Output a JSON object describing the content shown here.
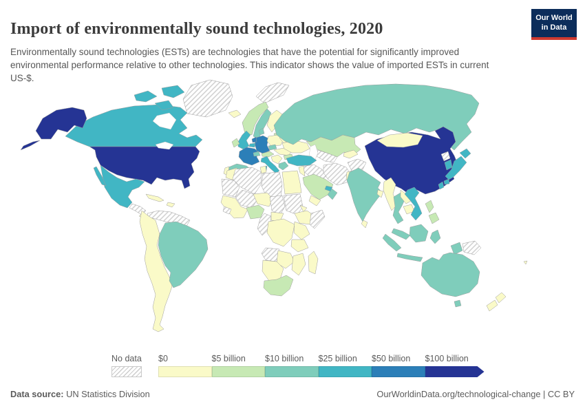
{
  "header": {
    "title": "Import of environmentally sound technologies, 2020",
    "subtitle": "Environmentally sound technologies (ESTs) are technologies that have the potential for significantly improved environmental performance relative to other technologies. This indicator shows the value of imported ESTs in current US-$.",
    "logo": {
      "line1": "Our World",
      "line2": "in Data",
      "bg": "#0c2d5b",
      "accent": "#cf3a30"
    }
  },
  "legend": {
    "no_data_label": "No data",
    "stops": [
      {
        "label": "$0",
        "color": "#fafac8"
      },
      {
        "label": "$5 billion",
        "color": "#c7e9b4"
      },
      {
        "label": "$10 billion",
        "color": "#7fcdbb"
      },
      {
        "label": "$25 billion",
        "color": "#41b6c4"
      },
      {
        "label": "$50 billion",
        "color": "#2c7fb8"
      },
      {
        "label": "$100 billion",
        "color": "#253494"
      }
    ]
  },
  "footer": {
    "source_label": "Data source:",
    "source_value": " UN Statistics Division",
    "link": "OurWorldinData.org/technological-change | CC BY"
  },
  "map": {
    "border_color": "#9c9c9c",
    "hatch_line_color": "#cccccc",
    "bucket_colors": {
      "b1": "#fafac8",
      "b2": "#c7e9b4",
      "b3": "#7fcdbb",
      "b4": "#41b6c4",
      "b5": "#2c7fb8",
      "b6": "#253494"
    },
    "regions": {
      "greenland": "b0",
      "svalbard": "b0",
      "canada": "b4",
      "alaska": "b6",
      "usa": "b6",
      "mexico": "b4",
      "guatemala_honduras": "b0",
      "central_america": "b1",
      "cuba": "b1",
      "hispaniola": "b1",
      "venezuela_guyanas": "b0",
      "brazil": "b3",
      "south_america_west": "b1",
      "iceland": "b1",
      "norway": "b2",
      "sweden": "b3",
      "finland": "b1",
      "baltics": "b2",
      "uk": "b4",
      "ireland": "b2",
      "france": "b5",
      "spain": "b3",
      "portugal": "b1",
      "germany": "b5",
      "netherlands": "b5",
      "belgium": "b4",
      "denmark": "b3",
      "switzerland": "b3",
      "czechia": "b3",
      "austria": "b2",
      "poland": "b1",
      "italy": "b4",
      "balkans": "b1",
      "greece": "b3",
      "hungary_romania": "b1",
      "bulgaria": "b2",
      "belarus": "b1",
      "ukraine": "b1",
      "russia": "b3",
      "kazakhstan": "b2",
      "central_asia": "b0",
      "kyrgyz_tajik": "b1",
      "turkey": "b4",
      "syria_iraq": "b0",
      "israel_jordan": "b1",
      "iran": "b0",
      "afghanistan": "b0",
      "pakistan": "b1",
      "saudi_arabia": "b2",
      "yemen": "b1",
      "oman": "b3",
      "uae": "b4",
      "morocco": "b1",
      "algeria": "b0",
      "tunisia": "b1",
      "libya": "b0",
      "egypt": "b1",
      "mauritania_wsahara": "b0",
      "mali": "b0",
      "niger": "b1",
      "chad": "b0",
      "sudan": "b0",
      "eritrea": "b1",
      "ethiopia": "b1",
      "somalia": "b0",
      "west_africa": "b1",
      "guinea": "b0",
      "nigeria": "b2",
      "cameroon_gabon_congo": "b0",
      "car": "b1",
      "drc": "b1",
      "uganda_kenya": "b1",
      "tanzania": "b1",
      "angola": "b0",
      "zambia_zimbabwe": "b1",
      "mozambique": "b1",
      "namibia_botswana": "b1",
      "south_africa": "b2",
      "madagascar": "b1",
      "china": "b6",
      "mongolia": "b1",
      "nepal": "b1",
      "india": "b3",
      "bangladesh": "b1",
      "sri_lanka": "b1",
      "myanmar": "b1",
      "thailand": "b3",
      "laos": "b1",
      "cambodia": "b1",
      "vietnam": "b4",
      "malaysia": "b3",
      "indonesia": "b3",
      "png": "b0",
      "philippines": "b2",
      "taiwan": "b4",
      "north_korea": "b0",
      "south_korea": "b4",
      "japan": "b4",
      "australia": "b3",
      "nz": "b1",
      "fiji": "b1"
    }
  },
  "chart_data": {
    "type": "heatmap",
    "title": "Import of environmentally sound technologies, 2020",
    "unit": "current US-$",
    "year": 2020,
    "legend_position": "bottom",
    "bins": [
      "$0–5 billion",
      "$5–10 billion",
      "$10–25 billion",
      "$25–50 billion",
      "$50–100 billion",
      "$100 billion and over",
      "No data"
    ],
    "values_by_bin": {
      "$100 billion and over": [
        "United States",
        "China"
      ],
      "$50–100 billion": [
        "Germany",
        "France",
        "Netherlands"
      ],
      "$25–50 billion": [
        "Canada",
        "Mexico",
        "United Kingdom",
        "Belgium",
        "Italy",
        "Turkey",
        "Japan",
        "South Korea",
        "Taiwan",
        "Vietnam",
        "United Arab Emirates"
      ],
      "$10–25 billion": [
        "Russia",
        "India",
        "Brazil",
        "Australia",
        "Spain",
        "Sweden",
        "Denmark",
        "Switzerland",
        "Czechia",
        "Greece",
        "Thailand",
        "Malaysia",
        "Indonesia",
        "Oman"
      ],
      "$5–10 billion": [
        "Norway",
        "Austria",
        "Kazakhstan",
        "Saudi Arabia",
        "South Africa",
        "Nigeria",
        "Philippines",
        "Ireland",
        "Baltic states",
        "Bulgaria"
      ],
      "$0–5 billion": [
        "Most of South America (except Brazil)",
        "Most of Africa",
        "Eastern Europe (Poland, Ukraine, Romania)",
        "Finland",
        "Portugal",
        "Mongolia",
        "Pakistan",
        "Myanmar",
        "Central Asia (Kyrgyzstan, Tajikistan)",
        "Sri Lanka",
        "New Zealand",
        "Cuba",
        "Madagascar",
        "Egypt",
        "Morocco",
        "Ethiopia",
        "Kenya",
        "Tanzania",
        "Yemen",
        "Iceland"
      ],
      "No data": [
        "Greenland",
        "Venezuela",
        "Guyana",
        "Suriname",
        "Algeria",
        "Libya",
        "Mali",
        "Mauritania",
        "Chad",
        "Sudan",
        "Somalia",
        "Angola",
        "Congo",
        "Cameroon",
        "Guinea",
        "Iran",
        "Iraq",
        "Syria",
        "Afghanistan",
        "Turkmenistan",
        "Uzbekistan",
        "North Korea",
        "Papua New Guinea",
        "Honduras",
        "Guatemala",
        "Svalbard"
      ]
    }
  }
}
